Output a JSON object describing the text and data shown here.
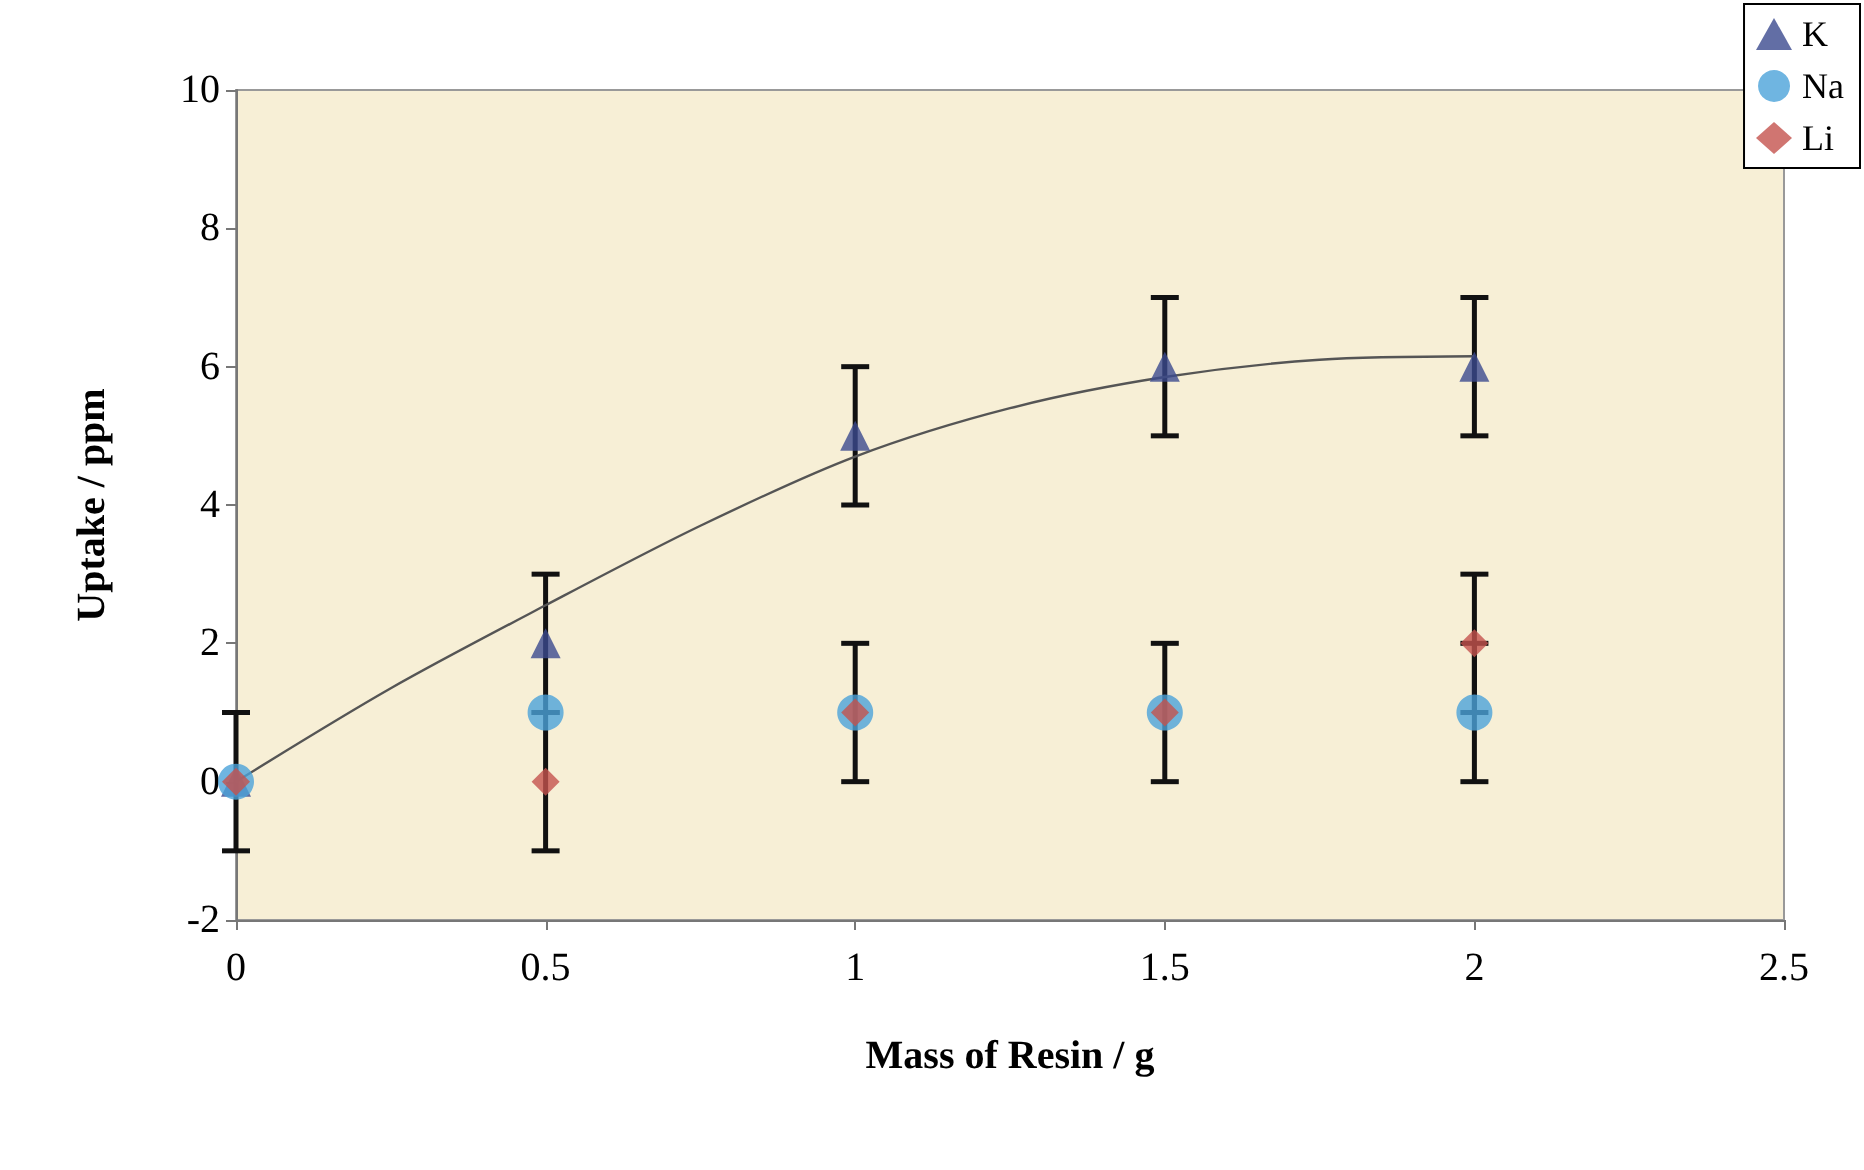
{
  "chart_data": {
    "type": "scatter",
    "xlabel": "Mass of Resin / g",
    "ylabel": "Uptake / ppm",
    "x": [
      0,
      0.5,
      1,
      1.5,
      2
    ],
    "series": [
      {
        "name": "K",
        "color": "#3b4a8f",
        "marker": "triangle",
        "values": [
          0,
          2,
          5,
          6,
          6
        ],
        "errors": [
          1,
          1,
          1,
          1,
          1
        ]
      },
      {
        "name": "Na",
        "color": "#4ba3d9",
        "marker": "circle",
        "values": [
          0,
          1,
          1,
          1,
          1
        ],
        "errors": [
          null,
          null,
          null,
          null,
          1
        ]
      },
      {
        "name": "Li",
        "color": "#c4524d",
        "marker": "diamond",
        "values": [
          0,
          0,
          1,
          1,
          2
        ],
        "errors": [
          null,
          1,
          1,
          1,
          1
        ]
      },
      {
        "type": "line",
        "color": "#555555",
        "marker": "none",
        "x": [
          0,
          0.25,
          0.5,
          0.75,
          1,
          1.25,
          1.5,
          1.75,
          2
        ],
        "values": [
          0,
          1.35,
          2.55,
          3.7,
          4.7,
          5.4,
          5.85,
          6.1,
          6.15
        ]
      }
    ],
    "xlim": [
      0,
      2.5
    ],
    "xticks": [
      0,
      0.5,
      1,
      1.5,
      2,
      2.5
    ],
    "ylim": [
      -2,
      10
    ],
    "yticks": [
      -2,
      0,
      2,
      4,
      6,
      8,
      10
    ],
    "grid": false,
    "legend": "top right"
  }
}
